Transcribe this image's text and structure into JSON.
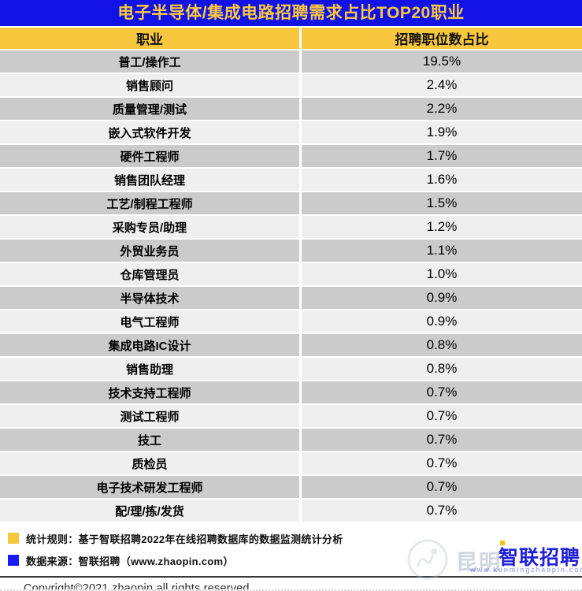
{
  "title": "电子半导体/集成电路招聘需求占比TOP20职业",
  "table": {
    "columns": [
      "职业",
      "招聘职位数占比"
    ],
    "rows": [
      {
        "occupation": "普工/操作工",
        "share": "19.5%"
      },
      {
        "occupation": "销售顾问",
        "share": "2.4%"
      },
      {
        "occupation": "质量管理/测试",
        "share": "2.2%"
      },
      {
        "occupation": "嵌入式软件开发",
        "share": "1.9%"
      },
      {
        "occupation": "硬件工程师",
        "share": "1.7%"
      },
      {
        "occupation": "销售团队经理",
        "share": "1.6%"
      },
      {
        "occupation": "工艺/制程工程师",
        "share": "1.5%"
      },
      {
        "occupation": "采购专员/助理",
        "share": "1.2%"
      },
      {
        "occupation": "外贸业务员",
        "share": "1.1%"
      },
      {
        "occupation": "仓库管理员",
        "share": "1.0%"
      },
      {
        "occupation": "半导体技术",
        "share": "0.9%"
      },
      {
        "occupation": "电气工程师",
        "share": "0.9%"
      },
      {
        "occupation": "集成电路IC设计",
        "share": "0.8%"
      },
      {
        "occupation": "销售助理",
        "share": "0.8%"
      },
      {
        "occupation": "技术支持工程师",
        "share": "0.7%"
      },
      {
        "occupation": "测试工程师",
        "share": "0.7%"
      },
      {
        "occupation": "技工",
        "share": "0.7%"
      },
      {
        "occupation": "质检员",
        "share": "0.7%"
      },
      {
        "occupation": "电子技术研发工程师",
        "share": "0.7%"
      },
      {
        "occupation": "配/理/拣/发货",
        "share": "0.7%"
      }
    ]
  },
  "chart_data": {
    "type": "table",
    "title": "电子半导体/集成电路招聘需求占比TOP20职业",
    "columns": [
      "职业",
      "招聘职位数占比"
    ],
    "categories": [
      "普工/操作工",
      "销售顾问",
      "质量管理/测试",
      "嵌入式软件开发",
      "硬件工程师",
      "销售团队经理",
      "工艺/制程工程师",
      "采购专员/助理",
      "外贸业务员",
      "仓库管理员",
      "半导体技术",
      "电气工程师",
      "集成电路IC设计",
      "销售助理",
      "技术支持工程师",
      "测试工程师",
      "技工",
      "质检员",
      "电子技术研发工程师",
      "配/理/拣/发货"
    ],
    "values_percent": [
      19.5,
      2.4,
      2.2,
      1.9,
      1.7,
      1.6,
      1.5,
      1.2,
      1.1,
      1.0,
      0.9,
      0.9,
      0.8,
      0.8,
      0.7,
      0.7,
      0.7,
      0.7,
      0.7,
      0.7
    ]
  },
  "footer": {
    "legend": [
      {
        "bullet_color": "#f9c73d",
        "text": "统计规则：基于智联招聘2022年在线招聘数据库的数据监测统计分析"
      },
      {
        "bullet_color": "#1a1aff",
        "text": "数据来源：智联招聘（www.zhaopin.com）"
      }
    ],
    "copyright": "Copyright©2021 zhaopin all rights reserved"
  },
  "watermark": {
    "region_text": "昆明",
    "brand_text": "智联招聘",
    "url_text": "www.kunmingzhaopin.com"
  },
  "colors": {
    "title_bar": "#1113e6",
    "title_text": "#fac83f",
    "header_bg": "#f9c73d",
    "row_odd": "#cbcbcb",
    "row_even": "#efefef",
    "legend_yellow": "#f9c73d",
    "legend_blue": "#1a1aff",
    "watermark_blue": "#1f1fd8"
  }
}
